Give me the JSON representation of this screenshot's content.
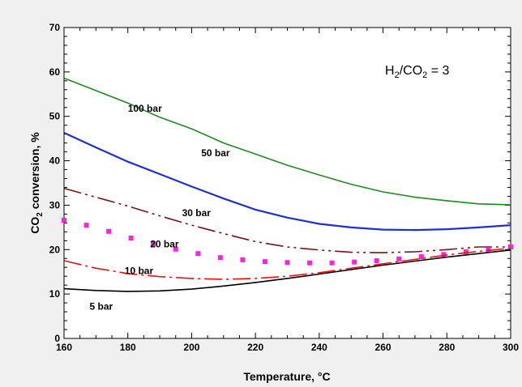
{
  "chart_data": {
    "type": "line",
    "xlabel": "Temperature, °C",
    "ylabel_main": "CO",
    "ylabel_sub": "2",
    "ylabel_tail": " conversion, %",
    "xlim": [
      160,
      300
    ],
    "ylim": [
      0,
      70
    ],
    "xticks": [
      160,
      180,
      200,
      220,
      240,
      260,
      280,
      300
    ],
    "yticks": [
      0,
      10,
      20,
      30,
      40,
      50,
      60,
      70
    ],
    "grid": false,
    "annotation": {
      "h": "H",
      "sub1": "2",
      "mid": "/CO",
      "sub2": "2",
      "tail": " = 3"
    },
    "series": [
      {
        "name": "100 bar",
        "color": "#1f8a1f",
        "style": "solid",
        "label_at": [
          180,
          51
        ],
        "x": [
          160,
          170,
          180,
          190,
          200,
          210,
          220,
          230,
          240,
          250,
          260,
          270,
          280,
          290,
          300
        ],
        "y": [
          58.6,
          55.8,
          53.0,
          49.8,
          47.2,
          44.0,
          41.5,
          39.0,
          36.8,
          34.7,
          33.0,
          31.8,
          31.0,
          30.3,
          30.1
        ]
      },
      {
        "name": "50 bar",
        "color": "#1f2fd0",
        "style": "solid",
        "label_at": [
          203,
          41
        ],
        "x": [
          160,
          170,
          180,
          190,
          200,
          210,
          220,
          230,
          240,
          250,
          260,
          270,
          280,
          290,
          300
        ],
        "y": [
          46.3,
          43.0,
          39.8,
          37.0,
          34.2,
          31.5,
          29.0,
          27.2,
          25.8,
          25.0,
          24.5,
          24.4,
          24.6,
          25.0,
          25.5
        ]
      },
      {
        "name": "30 bar",
        "color": "#7a1515",
        "style": "dashdotdot",
        "label_at": [
          197,
          27.5
        ],
        "x": [
          160,
          170,
          180,
          190,
          200,
          210,
          220,
          230,
          240,
          250,
          260,
          270,
          280,
          290,
          300
        ],
        "y": [
          33.8,
          31.8,
          29.8,
          27.6,
          25.5,
          23.6,
          21.8,
          20.6,
          19.9,
          19.4,
          19.3,
          19.5,
          20.0,
          20.6,
          20.6
        ]
      },
      {
        "name": "20 bar",
        "color": "#ff22dd",
        "style": "dots",
        "label_at": [
          187,
          20.5
        ],
        "x": [
          160,
          167,
          174,
          181,
          188,
          195,
          202,
          209,
          216,
          223,
          230,
          237,
          244,
          251,
          258,
          265,
          272,
          279,
          286,
          293,
          300
        ],
        "y": [
          26.6,
          25.5,
          24.1,
          22.6,
          21.3,
          20.1,
          19.1,
          18.2,
          17.7,
          17.3,
          17.1,
          17.0,
          17.0,
          17.2,
          17.5,
          17.9,
          18.4,
          18.9,
          19.5,
          20.0,
          20.6
        ]
      },
      {
        "name": "10 bar",
        "color": "#ee1111",
        "style": "dashdot",
        "label_at": [
          179,
          14.5
        ],
        "x": [
          160,
          170,
          180,
          190,
          200,
          210,
          220,
          230,
          240,
          250,
          260,
          270,
          280,
          290,
          300
        ],
        "y": [
          17.5,
          15.8,
          14.6,
          13.9,
          13.5,
          13.3,
          13.5,
          14.0,
          14.8,
          15.8,
          16.8,
          17.8,
          18.8,
          19.6,
          20.3
        ]
      },
      {
        "name": "5 bar",
        "color": "#000000",
        "style": "solid",
        "label_at": [
          168,
          6.5
        ],
        "x": [
          160,
          170,
          180,
          190,
          200,
          210,
          220,
          230,
          240,
          250,
          260,
          270,
          280,
          290,
          300
        ],
        "y": [
          11.2,
          10.8,
          10.6,
          10.7,
          11.1,
          11.8,
          12.6,
          13.5,
          14.5,
          15.5,
          16.5,
          17.4,
          18.3,
          19.1,
          19.9
        ]
      }
    ]
  }
}
